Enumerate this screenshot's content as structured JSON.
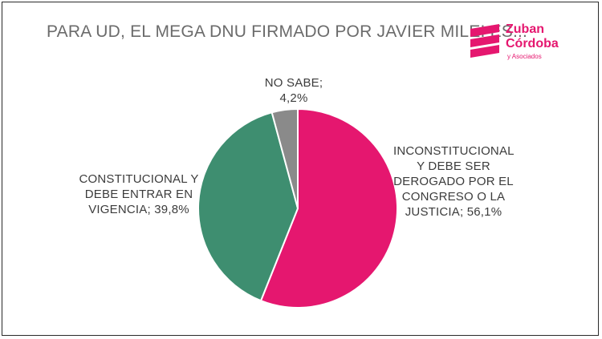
{
  "title": "PARA UD, EL MEGA DNU FIRMADO POR JAVIER MILEI ES...",
  "logo": {
    "name_line1": "Zuban",
    "name_line2": "Córdoba",
    "sub": "y Asociados",
    "color": "#e5176f"
  },
  "chart_data": {
    "type": "pie",
    "title": "PARA UD, EL MEGA DNU FIRMADO POR JAVIER MILEI ES...",
    "slices": [
      {
        "label": "INCONSTITUCIONAL Y DEBE SER DEROGADO POR EL CONGRESO O LA JUSTICIA",
        "value": 56.1,
        "value_label": "56,1%",
        "color": "#e5176f"
      },
      {
        "label": "CONSTITUCIONAL Y DEBE ENTRAR EN VIGENCIA",
        "value": 39.8,
        "value_label": "39,8%",
        "color": "#3e8e70"
      },
      {
        "label": "NO SABE",
        "value": 4.2,
        "value_label": "4,2%",
        "color": "#8a8a8a"
      }
    ],
    "label_lines": {
      "nosabe": [
        "NO SABE;",
        "4,2%"
      ],
      "inconstitucional": [
        "INCONSTITUCIONAL",
        "Y DEBE SER",
        "DEROGADO POR EL",
        "CONGRESO O LA",
        "JUSTICIA; 56,1%"
      ],
      "constitucional": [
        "CONSTITUCIONAL Y",
        "DEBE ENTRAR EN",
        "VIGENCIA; 39,8%"
      ]
    }
  }
}
